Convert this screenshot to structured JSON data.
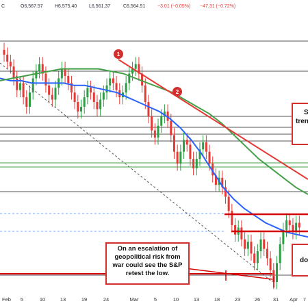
{
  "ohlc_bar": {
    "symbol_suffix": "C",
    "open": "O6,567.57",
    "high": "H6,575.40",
    "low": "L6,561.37",
    "close": "C6,564.51",
    "change": "−3.01 (−0.05%)",
    "volume": "−47.31 (−0.72%)"
  },
  "annotations": {
    "marker_1": "1",
    "marker_2": "2",
    "geo_risk_text": "On an escalation of geopolitical risk from war could see the S&P retest the low.",
    "right_box_top_partial": "S",
    "right_box_top_partial_2": "tren",
    "right_box_bottom_partial": "do"
  },
  "colors": {
    "bull_candle": "#2e9e44",
    "bear_candle": "#e53935",
    "ma_100": "#2962ff",
    "ma_200": "#43a047",
    "trendline": "#e53935",
    "support_line": "#d50000",
    "fib_dashed": "#7aa7ff"
  },
  "chart_data": {
    "type": "candlestick",
    "x_ticks": [
      "Feb",
      "5",
      "10",
      "13",
      "19",
      "24",
      "Mar",
      "5",
      "10",
      "13",
      "18",
      "23",
      "26",
      "31",
      "Apr",
      "7"
    ],
    "closes": [
      0.96,
      0.93,
      0.91,
      0.86,
      0.81,
      0.84,
      0.78,
      0.74,
      0.8,
      0.86,
      0.89,
      0.92,
      0.88,
      0.83,
      0.79,
      0.77,
      0.82,
      0.86,
      0.9,
      0.87,
      0.84,
      0.8,
      0.76,
      0.72,
      0.74,
      0.78,
      0.82,
      0.8,
      0.76,
      0.73,
      0.77,
      0.8,
      0.83,
      0.86,
      0.84,
      0.81,
      0.78,
      0.8,
      0.84,
      0.88,
      0.9,
      0.92,
      0.88,
      0.83,
      0.76,
      0.7,
      0.64,
      0.61,
      0.66,
      0.7,
      0.72,
      0.68,
      0.62,
      0.55,
      0.5,
      0.55,
      0.6,
      0.58,
      0.52,
      0.48,
      0.52,
      0.56,
      0.59,
      0.55,
      0.5,
      0.45,
      0.41,
      0.44,
      0.4,
      0.36,
      0.3,
      0.24,
      0.2,
      0.23,
      0.18,
      0.14,
      0.17,
      0.12,
      0.08,
      0.13,
      0.18,
      0.14,
      0.1,
      0.05,
      0.0,
      0.08,
      0.16,
      0.22,
      0.26,
      0.24,
      0.21,
      0.25,
      0.23
    ],
    "ma_100": [
      0.86,
      0.85,
      0.85,
      0.84,
      0.84,
      0.84,
      0.84,
      0.83,
      0.83,
      0.82,
      0.81,
      0.8,
      0.78,
      0.76,
      0.74,
      0.72,
      0.69,
      0.65,
      0.6,
      0.54,
      0.47,
      0.4,
      0.35,
      0.31,
      0.28,
      0.25,
      0.23,
      0.21,
      0.2,
      0.19
    ],
    "ma_200": [
      0.85,
      0.86,
      0.87,
      0.88,
      0.89,
      0.9,
      0.9,
      0.9,
      0.9,
      0.89,
      0.88,
      0.86,
      0.84,
      0.82,
      0.8,
      0.77,
      0.74,
      0.71,
      0.67,
      0.62,
      0.57,
      0.52,
      0.48,
      0.44,
      0.4,
      0.37
    ]
  }
}
